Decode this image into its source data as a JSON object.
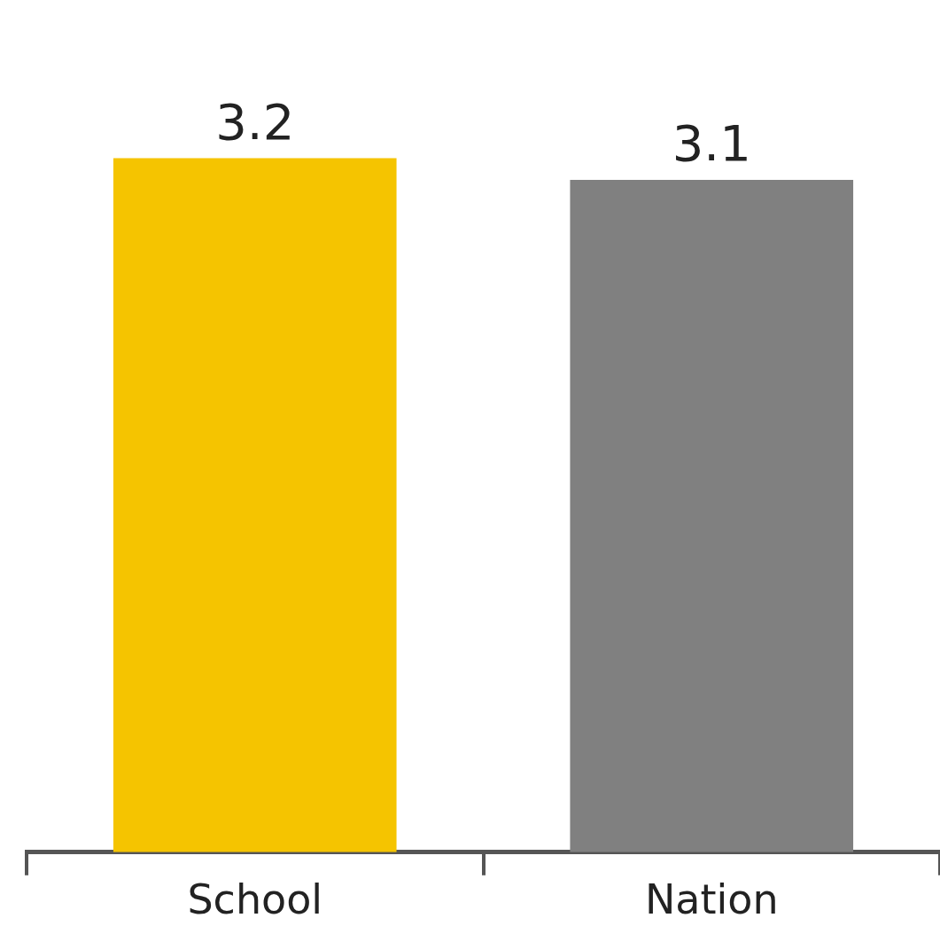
{
  "chart_data": {
    "type": "bar",
    "categories": [
      "School",
      "Nation"
    ],
    "values": [
      3.2,
      3.1
    ],
    "colors": [
      "#f5c400",
      "#808080"
    ],
    "data_labels": true,
    "grid": false,
    "legend": false
  }
}
